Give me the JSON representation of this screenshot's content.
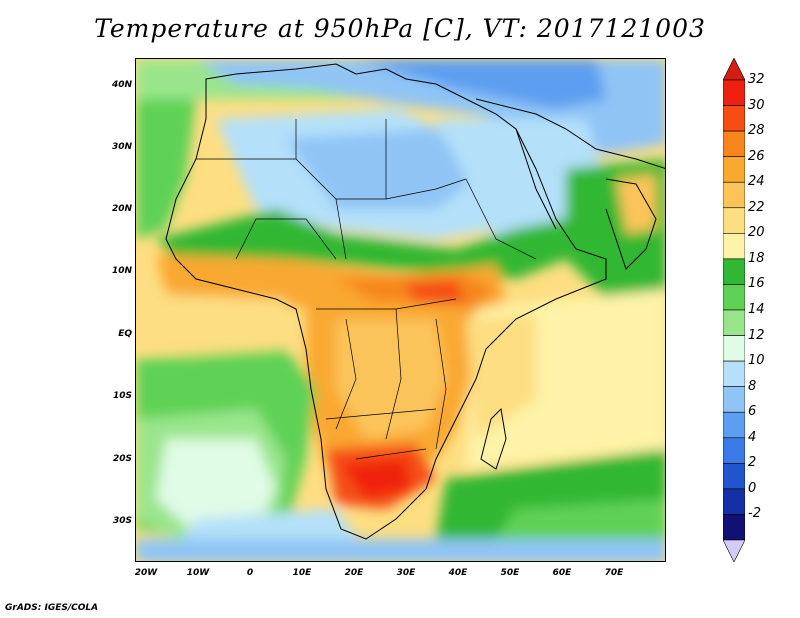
{
  "title": "Temperature at 950hPa [C], VT: 2017121003",
  "footer": "GrADS: IGES/COLA",
  "map": {
    "latitude_labels": [
      "40N",
      "30N",
      "20N",
      "10N",
      "EQ",
      "10S",
      "20S",
      "30S"
    ],
    "longitude_labels": [
      "20W",
      "10W",
      "0",
      "10E",
      "20E",
      "30E",
      "40E",
      "50E",
      "60E",
      "70E"
    ],
    "latitude_range": [
      -36,
      45
    ],
    "longitude_range": [
      -22,
      80
    ]
  },
  "colorbar": {
    "labels": [
      "32",
      "30",
      "28",
      "26",
      "24",
      "22",
      "20",
      "18",
      "16",
      "14",
      "12",
      "10",
      "8",
      "6",
      "4",
      "2",
      "0",
      "-2"
    ],
    "colors": [
      "#f02010",
      "#f54d13",
      "#f7861a",
      "#f9a830",
      "#fbc45a",
      "#fdde82",
      "#fef3a8",
      "#31b733",
      "#5fd255",
      "#9ae58c",
      "#e0fbe6",
      "#b4e0fa",
      "#8fc4f5",
      "#5d9ef0",
      "#3a7ae6",
      "#2155cd",
      "#1530a6",
      "#101075"
    ],
    "top_triangle_color": "#d41e12",
    "bottom_triangle_color": "#d4ccf5"
  }
}
